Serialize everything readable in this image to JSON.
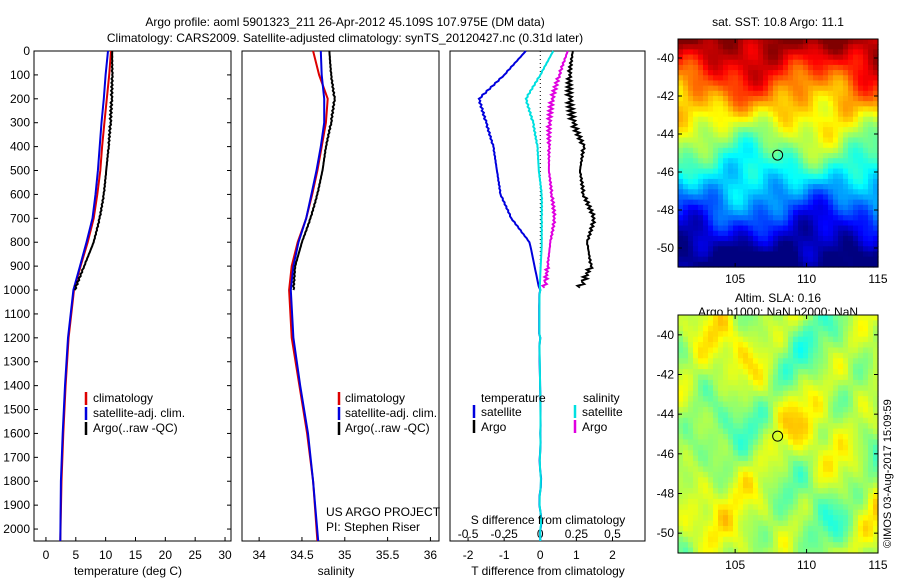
{
  "header": {
    "line1": "Argo profile: aoml 5901323_211 26-Apr-2012 45.109S 107.975E (DM data)",
    "line2": "Climatology: CARS2009. Satellite-adjusted climatology: synTS_20120427.nc (0.31d later)"
  },
  "sst_panel": {
    "title": "sat. SST: 10.8 Argo: 11.1"
  },
  "sla_panel": {
    "title1": "Altim. SLA: 0.16",
    "title2": "Argo h1000: NaN h2000: NaN"
  },
  "stamp": "©IMOS 03-Aug-2017 15:09:59",
  "colors": {
    "climatology": "#dd0000",
    "satellite": "#0000dd",
    "argo": "#000000",
    "salinity_satellite": "#00e0e0",
    "salinity_argo": "#e000e0"
  },
  "chart_data": [
    {
      "type": "line",
      "xlabel": "temperature (deg C)",
      "xlim": [
        -2,
        31
      ],
      "xticks": [
        0,
        5,
        10,
        15,
        20,
        25,
        30
      ],
      "ylim": [
        0,
        2050
      ],
      "yticks": [
        0,
        100,
        200,
        300,
        400,
        500,
        600,
        700,
        800,
        900,
        1000,
        1100,
        1200,
        1300,
        1400,
        1500,
        1600,
        1700,
        1800,
        1900,
        2000
      ],
      "ydir": "reversed",
      "legend": [
        "climatology",
        "satellite-adj. clim.",
        "Argo(..raw -QC)"
      ],
      "series": [
        {
          "name": "climatology",
          "depth": [
            0,
            100,
            200,
            300,
            400,
            500,
            600,
            700,
            800,
            900,
            1000,
            1200,
            1400,
            1600,
            1800,
            2050
          ],
          "values": [
            10.9,
            10.6,
            10.2,
            9.8,
            9.4,
            9.1,
            8.6,
            8.0,
            7.0,
            5.8,
            4.7,
            3.8,
            3.3,
            2.9,
            2.6,
            2.4
          ]
        },
        {
          "name": "satellite-adj. clim.",
          "depth": [
            0,
            100,
            200,
            300,
            400,
            500,
            600,
            700,
            800,
            900,
            1000,
            1200,
            1400,
            1600,
            1800,
            2050
          ],
          "values": [
            10.4,
            10.0,
            9.7,
            9.3,
            9.0,
            8.7,
            8.3,
            7.8,
            6.8,
            5.7,
            4.6,
            3.7,
            3.2,
            2.8,
            2.5,
            2.4
          ]
        },
        {
          "name": "Argo(..raw -QC)",
          "depth": [
            0,
            100,
            200,
            300,
            400,
            500,
            600,
            700,
            800,
            900,
            1000
          ],
          "values": [
            11.1,
            11.1,
            11.0,
            10.8,
            10.5,
            10.1,
            9.7,
            9.0,
            8.0,
            6.4,
            4.8
          ]
        }
      ]
    },
    {
      "type": "line",
      "xlabel": "salinity",
      "xlim": [
        33.8,
        36.1
      ],
      "xticks": [
        34,
        34.5,
        35,
        35.5,
        36
      ],
      "ylim": [
        0,
        2050
      ],
      "ydir": "reversed",
      "legend": [
        "climatology",
        "satellite-adj. clim.",
        "Argo(..raw -QC)"
      ],
      "credit": [
        "US ARGO PROJECT",
        "PI: Stephen Riser"
      ],
      "series": [
        {
          "name": "climatology",
          "depth": [
            0,
            100,
            200,
            300,
            400,
            500,
            600,
            700,
            800,
            900,
            1000,
            1200,
            1400,
            1600,
            1800,
            2050
          ],
          "values": [
            34.63,
            34.7,
            34.8,
            34.78,
            34.73,
            34.68,
            34.62,
            34.55,
            34.45,
            34.38,
            34.35,
            34.38,
            34.47,
            34.56,
            34.63,
            34.68
          ]
        },
        {
          "name": "satellite-adj. clim.",
          "depth": [
            0,
            100,
            200,
            300,
            400,
            500,
            600,
            700,
            800,
            900,
            1000,
            1200,
            1400,
            1600,
            1800,
            2050
          ],
          "values": [
            34.72,
            34.73,
            34.76,
            34.76,
            34.72,
            34.67,
            34.61,
            34.55,
            34.46,
            34.4,
            34.37,
            34.4,
            34.48,
            34.57,
            34.63,
            34.69
          ]
        },
        {
          "name": "Argo(..raw -QC)",
          "depth": [
            0,
            100,
            200,
            300,
            400,
            500,
            600,
            700,
            800,
            900,
            1000
          ],
          "values": [
            34.82,
            34.84,
            34.88,
            34.84,
            34.78,
            34.74,
            34.68,
            34.6,
            34.5,
            34.42,
            34.4
          ]
        }
      ]
    },
    {
      "type": "line",
      "xlabel": "T difference from climatology",
      "xlabel_top": "S difference from climatology",
      "xlim": [
        -2.5,
        2.9
      ],
      "xticks": [
        -2,
        -1,
        0,
        1,
        2
      ],
      "xticks_salinity": [
        -0.5,
        -0.25,
        0,
        0.25,
        0.5
      ],
      "xtick_salinity_labels": [
        "-0.5",
        "-0.25",
        "0",
        "0.25",
        "0.5"
      ],
      "ylim": [
        0,
        2050
      ],
      "ydir": "reversed",
      "legend_groups": {
        "left": "temperature",
        "right": "salinity"
      },
      "legend": [
        "satellite",
        "Argo",
        "satellite",
        "Argo"
      ],
      "series": [
        {
          "name": "temperature satellite",
          "depth": [
            0,
            100,
            200,
            300,
            400,
            500,
            600,
            700,
            800,
            1000,
            1200,
            1600,
            2050
          ],
          "values": [
            -0.4,
            -1.0,
            -1.7,
            -1.5,
            -1.3,
            -1.2,
            -1.1,
            -0.8,
            -0.3,
            0.0,
            0.0,
            0.0,
            0.0
          ]
        },
        {
          "name": "temperature Argo",
          "depth": [
            0,
            100,
            200,
            300,
            400,
            500,
            600,
            700,
            800,
            900,
            990
          ],
          "values": [
            0.9,
            0.8,
            0.8,
            0.9,
            1.2,
            1.1,
            1.2,
            1.5,
            1.3,
            1.4,
            1.1
          ]
        },
        {
          "name": "salinity satellite",
          "depth": [
            0,
            100,
            200,
            300,
            400,
            500,
            600,
            700,
            800,
            1000,
            1200,
            1600,
            2050
          ],
          "values": [
            0.09,
            0.0,
            -0.1,
            -0.05,
            -0.02,
            -0.01,
            0.01,
            0.01,
            0.01,
            0.0,
            0.0,
            0.0,
            0.0
          ]
        },
        {
          "name": "salinity Argo",
          "depth": [
            0,
            100,
            200,
            300,
            400,
            500,
            600,
            700,
            800,
            900,
            990
          ],
          "values": [
            0.19,
            0.13,
            0.08,
            0.06,
            0.06,
            0.06,
            0.08,
            0.1,
            0.07,
            0.05,
            0.03
          ]
        }
      ]
    },
    {
      "type": "heatmap",
      "title": "sat. SST: 10.8 Argo: 11.1",
      "xlim": [
        101,
        115
      ],
      "ylim": [
        -51,
        -39
      ],
      "xticks": [
        105,
        110,
        115
      ],
      "yticks": [
        -40,
        -42,
        -44,
        -46,
        -48,
        -50
      ],
      "marker": {
        "lon": 107.975,
        "lat": -45.109
      }
    },
    {
      "type": "heatmap",
      "title": "Altim. SLA: 0.16",
      "xlim": [
        101,
        115
      ],
      "ylim": [
        -51,
        -39
      ],
      "xticks": [
        105,
        110,
        115
      ],
      "yticks": [
        -40,
        -42,
        -44,
        -46,
        -48,
        -50
      ],
      "marker": {
        "lon": 107.975,
        "lat": -45.109
      }
    }
  ]
}
